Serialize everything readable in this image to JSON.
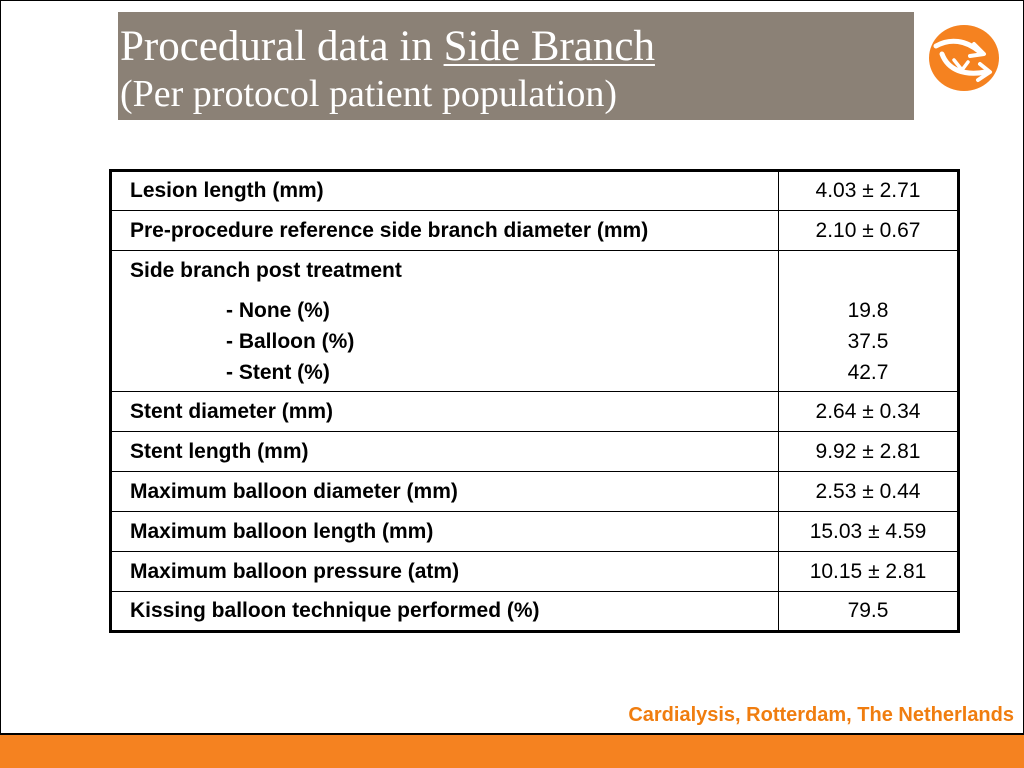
{
  "slide": {
    "title_prefix": "Procedural data in ",
    "title_emphasis": "Side Branch",
    "subtitle": "(Per protocol patient population)",
    "footer": "Cardialysis, Rotterdam, The Netherlands",
    "colors": {
      "title_background": "#8b8176",
      "accent_orange": "#f58220",
      "footer_text": "#f07d0f"
    },
    "logo_icon": "cardialysis-logo-icon"
  },
  "table": {
    "rows": [
      {
        "label": "Lesion length (mm)",
        "value": "4.03 ± 2.71"
      },
      {
        "label": "Pre-procedure reference side branch diameter (mm)",
        "value": "2.10 ± 0.67"
      }
    ],
    "side_branch": {
      "heading": "Side branch post treatment",
      "items": [
        {
          "label": "- None (%)",
          "value": "19.8"
        },
        {
          "label": "- Balloon (%)",
          "value": "37.5"
        },
        {
          "label": "- Stent (%)",
          "value": "42.7"
        }
      ]
    },
    "rows_after": [
      {
        "label": "Stent diameter (mm)",
        "value": "2.64 ± 0.34"
      },
      {
        "label": "Stent length (mm)",
        "value": "9.92 ± 2.81"
      },
      {
        "label": "Maximum balloon diameter (mm)",
        "value": "2.53 ± 0.44"
      },
      {
        "label": "Maximum balloon length (mm)",
        "value": "15.03 ± 4.59"
      },
      {
        "label": "Maximum balloon pressure (atm)",
        "value": "10.15 ± 2.81"
      },
      {
        "label": "Kissing balloon technique performed (%)",
        "value": "79.5"
      }
    ]
  }
}
